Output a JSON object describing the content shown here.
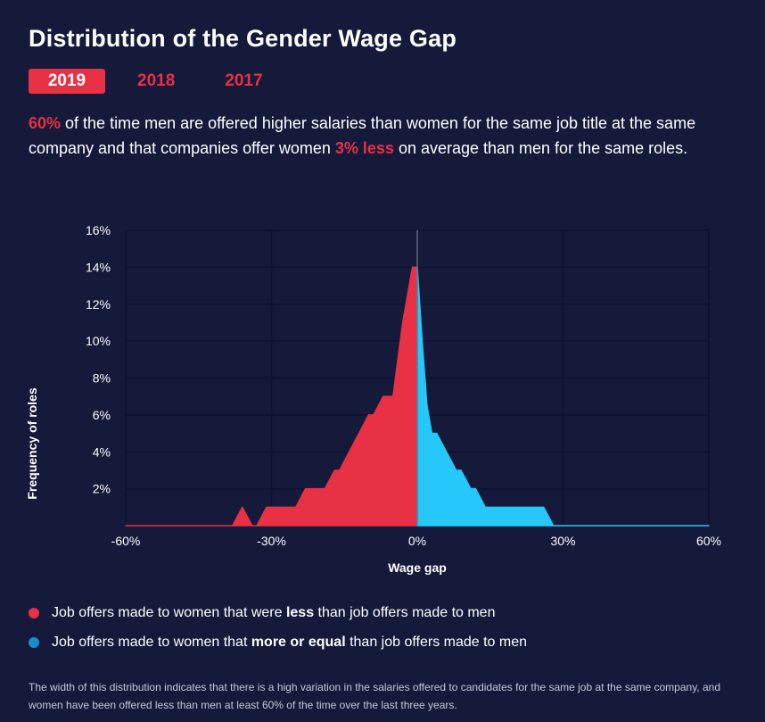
{
  "title": "Distribution of the Gender Wage Gap",
  "tabs": [
    {
      "label": "2019",
      "active": true
    },
    {
      "label": "2018",
      "active": false
    },
    {
      "label": "2017",
      "active": false
    }
  ],
  "summary": {
    "pct": "60%",
    "part1": " of the time men are offered higher salaries than women for the same job title at the same company and that companies offer women ",
    "less": "3% less",
    "part2": " on average than men for the same roles."
  },
  "colors": {
    "background": "#15193a",
    "negative": "#e83145",
    "positive": "#25c8f8",
    "legend_positive_dot": "#1a8dd0"
  },
  "chart_data": {
    "type": "area",
    "xlabel": "Wage gap",
    "ylabel": "Frequency of roles",
    "xlim": [
      -60,
      60
    ],
    "ylim": [
      0,
      16
    ],
    "x_ticks": [
      "-60%",
      "-30%",
      "0%",
      "30%",
      "60%"
    ],
    "y_ticks": [
      "2%",
      "4%",
      "6%",
      "8%",
      "10%",
      "12%",
      "14%",
      "16%"
    ],
    "grid": true,
    "series": [
      {
        "x": [
          -60,
          -38,
          -37,
          -36,
          -35,
          -34,
          -33,
          -32,
          -31,
          -30,
          -29,
          -28,
          -27,
          -26,
          -25,
          -24,
          -23,
          -22,
          -21,
          -20,
          -19,
          -18,
          -17,
          -16,
          -15,
          -14,
          -13,
          -12,
          -11,
          -10,
          -9,
          -8,
          -7,
          -6,
          -5,
          -4,
          -3,
          -2,
          -1,
          0
        ],
        "values": [
          0.0,
          0.0,
          0.5,
          1.0,
          0.5,
          0.0,
          0.0,
          0.5,
          1.0,
          1.0,
          1.0,
          1.0,
          1.0,
          1.0,
          1.0,
          1.5,
          2.0,
          2.0,
          2.0,
          2.0,
          2.0,
          2.5,
          3.0,
          3.0,
          3.5,
          4.0,
          4.5,
          5.0,
          5.5,
          6.0,
          6.0,
          6.5,
          7.0,
          7.0,
          7.0,
          9.0,
          11.0,
          12.5,
          14.0,
          14.0
        ]
      },
      {
        "x": [
          0,
          1,
          2,
          3,
          4,
          5,
          6,
          7,
          8,
          9,
          10,
          11,
          12,
          13,
          14,
          15,
          16,
          17,
          18,
          19,
          20,
          21,
          22,
          23,
          24,
          25,
          26,
          27,
          28,
          60
        ],
        "values": [
          14.0,
          10.0,
          6.5,
          5.0,
          5.0,
          4.5,
          4.0,
          3.5,
          3.0,
          3.0,
          2.5,
          2.0,
          2.0,
          1.5,
          1.0,
          1.0,
          1.0,
          1.0,
          1.0,
          1.0,
          1.0,
          1.0,
          1.0,
          1.0,
          1.0,
          1.0,
          1.0,
          0.5,
          0.0,
          0.0
        ]
      }
    ]
  },
  "legend": [
    {
      "pre": "Job offers made to women that were ",
      "bold": "less",
      "post": " than job offers made to men"
    },
    {
      "pre": "Job offers made to women that ",
      "bold": "more or equal",
      "post": " than job offers made to men"
    }
  ],
  "footnote": "The width of this distribution indicates that there is a high variation in the salaries offered to candidates for the same job at the same company, and women have been offered less than men at least 60% of the time over the last three years."
}
